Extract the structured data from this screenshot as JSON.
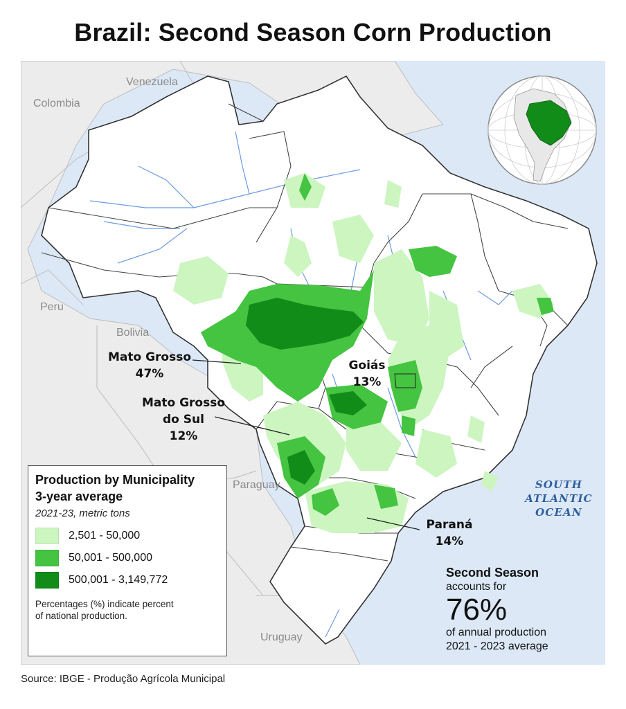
{
  "title": "Brazil: Second Season Corn Production",
  "colors": {
    "ocean": "#dce8f6",
    "neighbor_land": "#ececec",
    "brazil_land": "#ffffff",
    "tier_low": "#ccf5c0",
    "tier_mid": "#44c440",
    "tier_high": "#118c19",
    "river": "#6b9be0",
    "ocean_label": "#2f5f9e"
  },
  "neighbors": {
    "venezuela": "Venezuela",
    "colombia": "Colombia",
    "peru": "Peru",
    "bolivia": "Bolivia",
    "paraguay": "Paraguay",
    "uruguay": "Uruguay"
  },
  "ocean": {
    "line1": "SOUTH",
    "line2": "ATLANTIC",
    "line3": "OCEAN"
  },
  "callouts": {
    "mato_grosso": {
      "name": "Mato Grosso",
      "share": "47%"
    },
    "goias": {
      "name": "Goiás",
      "share": "13%"
    },
    "mato_grosso_do_sul": {
      "line1": "Mato Grosso",
      "line2": "do Sul",
      "share": "12%"
    },
    "parana": {
      "name": "Paraná",
      "share": "14%"
    }
  },
  "legend": {
    "title_line1": "Production by Municipality",
    "title_line2": "3-year average",
    "subtitle": "2021-23, metric tons",
    "items": [
      {
        "label": "2,501 - 50,000",
        "color": "#ccf5c0"
      },
      {
        "label": "50,001 - 500,000",
        "color": "#44c440"
      },
      {
        "label": "500,001 - 3,149,772",
        "color": "#118c19"
      }
    ],
    "note": "Percentages (%) indicate percent of national production."
  },
  "stat": {
    "headline": "Second Season",
    "line1": "accounts for",
    "value": "76%",
    "line2": "of annual production",
    "line3": "2021 - 2023 average"
  },
  "source": "Source: IBGE - Produção Agrícola Municipal"
}
